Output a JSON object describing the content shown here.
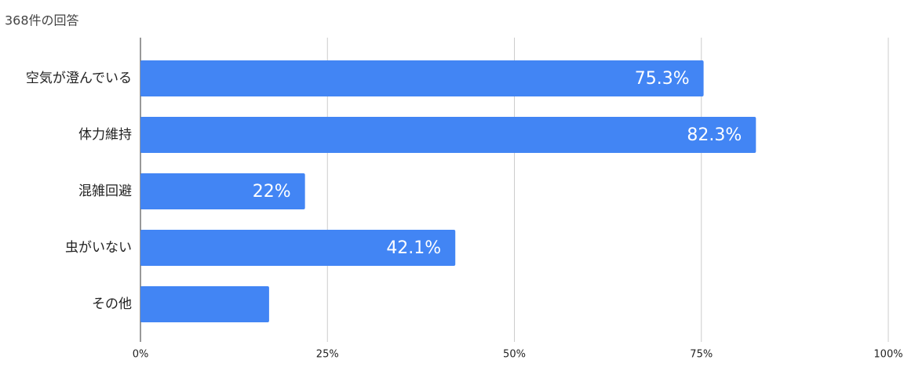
{
  "chart_data": {
    "type": "bar",
    "orientation": "horizontal",
    "title": "368件の回答",
    "categories": [
      "空気が澄んでいる",
      "体力維持",
      "混雑回避",
      "虫がいない",
      "その他"
    ],
    "values": [
      75.3,
      82.3,
      22,
      42.1,
      17.2
    ],
    "value_labels": [
      "75.3%",
      "82.3%",
      "22%",
      "42.1%",
      null
    ],
    "color": "#4285f4",
    "xlim": [
      0,
      100
    ],
    "xticks": [
      {
        "value": 0,
        "label": "0%"
      },
      {
        "value": 25,
        "label": "25%"
      },
      {
        "value": 50,
        "label": "50%"
      },
      {
        "value": 75,
        "label": "75%"
      },
      {
        "value": 100,
        "label": "100%"
      }
    ],
    "grid": true
  }
}
